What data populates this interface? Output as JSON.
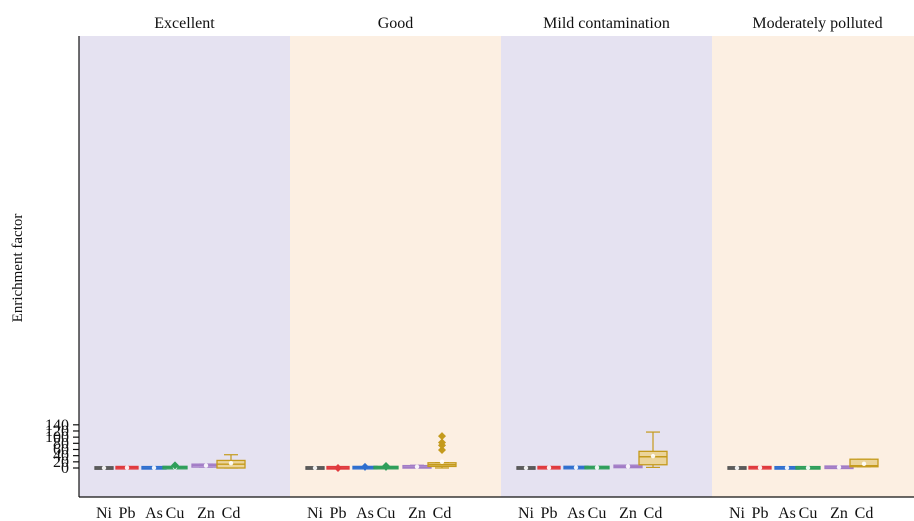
{
  "chart_data": {
    "type": "box",
    "ylabel": "Enrichment factor",
    "xlabel": "",
    "ylim": [
      -10,
      140
    ],
    "yticks": [
      0,
      20,
      40,
      60,
      80,
      100,
      120,
      140
    ],
    "grid": false,
    "categories": [
      "Ni",
      "Pb",
      "As",
      "Cu",
      "Zn",
      "Cd"
    ],
    "series_colors": {
      "Ni": "#555555",
      "Pb": "#e03a3e",
      "As": "#2f6fcf",
      "Cu": "#2e9e5a",
      "Zn": "#a27cc6",
      "Cd": "#c49a1c"
    },
    "box_fill_colors": {
      "Ni": "#cfcfcf",
      "Pb": "#f2b0b0",
      "As": "#a9c4ec",
      "Cu": "#a8dcbc",
      "Zn": "#d8c6ea",
      "Cd": "#ebd49a"
    },
    "panels": [
      {
        "title": "Excellent",
        "background": "#e5e2f1",
        "boxes": [
          {
            "element": "Ni",
            "min": 0,
            "q1": 0,
            "median": 0,
            "q3": 0,
            "max": 0,
            "mean": 0,
            "outliers": []
          },
          {
            "element": "Pb",
            "min": 0.8,
            "q1": 0.9,
            "median": 1.0,
            "q3": 1.1,
            "max": 1.2,
            "mean": 1.0,
            "outliers": []
          },
          {
            "element": "As",
            "min": 0.2,
            "q1": 0.4,
            "median": 0.6,
            "q3": 0.9,
            "max": 1.1,
            "mean": 0.6,
            "outliers": []
          },
          {
            "element": "Cu",
            "min": 0.5,
            "q1": 0.8,
            "median": 1.3,
            "q3": 2.0,
            "max": 2.4,
            "mean": 2.0,
            "outliers": [
              8.5
            ]
          },
          {
            "element": "Zn",
            "min": 3.0,
            "q1": 3.0,
            "median": 8.5,
            "q3": 12.5,
            "max": 12.8,
            "mean": 8.0,
            "outliers": []
          },
          {
            "element": "Cd",
            "min": 0,
            "q1": 0,
            "median": 12.5,
            "q3": 24.5,
            "max": 43,
            "mean": 15.5,
            "outliers": []
          }
        ]
      },
      {
        "title": "Good",
        "background": "#fcefe2",
        "boxes": [
          {
            "element": "Ni",
            "min": 0,
            "q1": 0,
            "median": 0,
            "q3": 0.1,
            "max": 0.2,
            "mean": 0.1,
            "outliers": []
          },
          {
            "element": "Pb",
            "min": 0.1,
            "q1": 0.4,
            "median": 0.6,
            "q3": 1.0,
            "max": 1.2,
            "mean": 0.6,
            "outliers": [
              0
            ]
          },
          {
            "element": "As",
            "min": 0.2,
            "q1": 0.7,
            "median": 1.1,
            "q3": 1.7,
            "max": 2.4,
            "mean": 1.1,
            "outliers": [
              3.5
            ]
          },
          {
            "element": "Cu",
            "min": 0.4,
            "q1": 0.8,
            "median": 1.2,
            "q3": 1.9,
            "max": 3.0,
            "mean": 1.4,
            "outliers": [
              3.5,
              6.5
            ]
          },
          {
            "element": "Zn",
            "min": 1.0,
            "q1": 2.0,
            "median": 3.0,
            "q3": 5.5,
            "max": 9.0,
            "mean": 4.0,
            "outliers": []
          },
          {
            "element": "Cd",
            "min": 0,
            "q1": 5.0,
            "median": 10.5,
            "q3": 17.0,
            "max": 17.5,
            "mean": 20.5,
            "outliers": [
              58.5,
              73.5,
              82.5,
              103.5
            ]
          }
        ]
      },
      {
        "title": "Mild contamination",
        "background": "#e5e2f1",
        "boxes": [
          {
            "element": "Ni",
            "min": 0,
            "q1": 0,
            "median": 0,
            "q3": 0.1,
            "max": 0.2,
            "mean": 0.1,
            "outliers": []
          },
          {
            "element": "Pb",
            "min": 0.3,
            "q1": 0.6,
            "median": 1.0,
            "q3": 1.5,
            "max": 1.8,
            "mean": 1.0,
            "outliers": []
          },
          {
            "element": "As",
            "min": 0.2,
            "q1": 0.7,
            "median": 1.5,
            "q3": 2.2,
            "max": 4.5,
            "mean": 1.6,
            "outliers": []
          },
          {
            "element": "Cu",
            "min": 0.3,
            "q1": 0.7,
            "median": 1.3,
            "q3": 2.2,
            "max": 3.5,
            "mean": 1.5,
            "outliers": []
          },
          {
            "element": "Zn",
            "min": 2.5,
            "q1": 3.8,
            "median": 5.0,
            "q3": 6.5,
            "max": 8.0,
            "mean": 5.0,
            "outliers": []
          },
          {
            "element": "Cd",
            "min": 2.0,
            "q1": 10.5,
            "median": 36.5,
            "q3": 54.0,
            "max": 116.5,
            "mean": 38.5,
            "outliers": []
          }
        ]
      },
      {
        "title": "Moderately polluted",
        "background": "#fcefe2",
        "boxes": [
          {
            "element": "Ni",
            "min": 0,
            "q1": 0,
            "median": 0,
            "q3": 0.1,
            "max": 0.2,
            "mean": 0.1,
            "outliers": []
          },
          {
            "element": "Pb",
            "min": 0.4,
            "q1": 0.6,
            "median": 0.9,
            "q3": 1.3,
            "max": 1.4,
            "mean": 0.9,
            "outliers": []
          },
          {
            "element": "As",
            "min": 0.2,
            "q1": 0.3,
            "median": 0.5,
            "q3": 0.6,
            "max": 0.7,
            "mean": 0.5,
            "outliers": []
          },
          {
            "element": "Cu",
            "min": 0.3,
            "q1": 0.4,
            "median": 0.6,
            "q3": 0.8,
            "max": 0.9,
            "mean": 0.6,
            "outliers": []
          },
          {
            "element": "Zn",
            "min": 1.8,
            "q1": 1.8,
            "median": 2.5,
            "q3": 3.0,
            "max": 3.0,
            "mean": 2.5,
            "outliers": []
          },
          {
            "element": "Cd",
            "min": 4.0,
            "q1": 4.0,
            "median": 7.5,
            "q3": 28.5,
            "max": 28.5,
            "mean": 13.5,
            "outliers": []
          }
        ]
      }
    ]
  }
}
